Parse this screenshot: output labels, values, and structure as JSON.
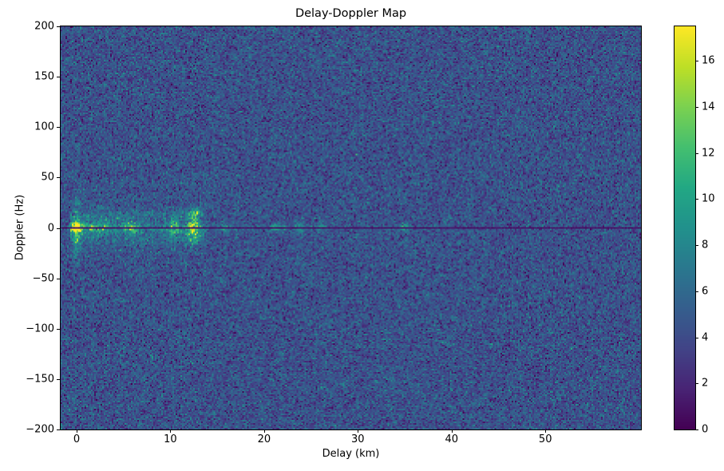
{
  "chart_data": {
    "type": "heatmap",
    "title": "Delay-Doppler Map",
    "xlabel": "Delay (km)",
    "ylabel": "Doppler (Hz)",
    "xlim": [
      -1.7,
      60.2
    ],
    "ylim": [
      -200,
      200
    ],
    "x_ticks": [
      {
        "value": 0,
        "label": "0"
      },
      {
        "value": 10,
        "label": "10"
      },
      {
        "value": 20,
        "label": "20"
      },
      {
        "value": 30,
        "label": "30"
      },
      {
        "value": 40,
        "label": "40"
      },
      {
        "value": 50,
        "label": "50"
      }
    ],
    "y_ticks": [
      {
        "value": 200,
        "label": "200"
      },
      {
        "value": 150,
        "label": "150"
      },
      {
        "value": 100,
        "label": "100"
      },
      {
        "value": 50,
        "label": "50"
      },
      {
        "value": 0,
        "label": "0"
      },
      {
        "value": -50,
        "label": "−50"
      },
      {
        "value": -100,
        "label": "−100"
      },
      {
        "value": -150,
        "label": "−150"
      },
      {
        "value": -200,
        "label": "−200"
      }
    ],
    "colorbar": {
      "vmin": 0,
      "vmax": 17.5,
      "ticks": [
        {
          "value": 0,
          "label": "0"
        },
        {
          "value": 2,
          "label": "2"
        },
        {
          "value": 4,
          "label": "4"
        },
        {
          "value": 6,
          "label": "6"
        },
        {
          "value": 8,
          "label": "8"
        },
        {
          "value": 10,
          "label": "10"
        },
        {
          "value": 12,
          "label": "12"
        },
        {
          "value": 14,
          "label": "14"
        },
        {
          "value": 16,
          "label": "16"
        }
      ],
      "colormap": "viridis",
      "stops": [
        [
          0.0,
          "#440154"
        ],
        [
          0.1,
          "#482475"
        ],
        [
          0.2,
          "#414487"
        ],
        [
          0.3,
          "#355f8d"
        ],
        [
          0.4,
          "#2a788e"
        ],
        [
          0.5,
          "#21918c"
        ],
        [
          0.6,
          "#22a884"
        ],
        [
          0.7,
          "#44bf70"
        ],
        [
          0.8,
          "#7ad151"
        ],
        [
          0.9,
          "#bddf26"
        ],
        [
          1.0,
          "#fde725"
        ]
      ]
    },
    "noise": {
      "mean": 4.4,
      "std": 1.5,
      "seed": 42
    },
    "grid": {
      "nx": 364,
      "ny": 253
    },
    "features": [
      {
        "kind": "blob",
        "delay": 0,
        "doppler": 0,
        "amp": 16,
        "sigma_delay": 0.35,
        "sigma_doppler": 2.8
      },
      {
        "kind": "vstreak",
        "delay": 0,
        "amp": 4.5,
        "sigma_delay": 0.28,
        "doppler_extent": 38
      },
      {
        "kind": "hband",
        "delay_min": -0.6,
        "delay_max": 13.6,
        "doppler_center": 0,
        "sigma_doppler": 6,
        "amp": 3.2,
        "decay": 0.12
      },
      {
        "kind": "hband",
        "delay_min": -0.6,
        "delay_max": 14,
        "doppler_center": 0,
        "sigma_doppler": 18,
        "amp": 0.9,
        "decay": 0.0
      },
      {
        "kind": "hband",
        "delay_min": -0.6,
        "delay_max": 13.5,
        "doppler_center": 13,
        "sigma_doppler": 2.5,
        "amp": 1.4,
        "decay": 0.0
      },
      {
        "kind": "hband",
        "delay_min": -0.6,
        "delay_max": 13.5,
        "doppler_center": -13,
        "sigma_doppler": 2.5,
        "amp": 1.2,
        "decay": 0.0
      },
      {
        "kind": "hband",
        "delay_min": -1.0,
        "delay_max": 44,
        "doppler_center": 0,
        "sigma_doppler": 1.5,
        "amp": 3.4,
        "decay": 0.055
      },
      {
        "kind": "blob",
        "delay": 2.3,
        "doppler": 0,
        "amp": 3.5,
        "sigma_delay": 0.7,
        "sigma_doppler": 4
      },
      {
        "kind": "blob",
        "delay": 5.8,
        "doppler": 0,
        "amp": 5,
        "sigma_delay": 0.5,
        "sigma_doppler": 5
      },
      {
        "kind": "blob",
        "delay": 10.4,
        "doppler": 0,
        "amp": 6,
        "sigma_delay": 0.4,
        "sigma_doppler": 6
      },
      {
        "kind": "blob",
        "delay": 12.4,
        "doppler": 0,
        "amp": 7,
        "sigma_delay": 0.5,
        "sigma_doppler": 9
      },
      {
        "kind": "vstreak",
        "delay": 12.5,
        "amp": 2.2,
        "sigma_delay": 0.3,
        "doppler_extent": 24
      },
      {
        "kind": "blob",
        "delay": 12.8,
        "doppler": 15,
        "amp": 5,
        "sigma_delay": 0.4,
        "sigma_doppler": 2
      },
      {
        "kind": "blob",
        "delay": 15.8,
        "doppler": 0,
        "amp": 3,
        "sigma_delay": 0.5,
        "sigma_doppler": 3
      },
      {
        "kind": "blob",
        "delay": 21.5,
        "doppler": 0,
        "amp": 4,
        "sigma_delay": 0.5,
        "sigma_doppler": 3
      },
      {
        "kind": "blob",
        "delay": 23.7,
        "doppler": 0,
        "amp": 4.5,
        "sigma_delay": 0.4,
        "sigma_doppler": 4
      },
      {
        "kind": "blob",
        "delay": 26,
        "doppler": 0,
        "amp": 3.5,
        "sigma_delay": 0.4,
        "sigma_doppler": 2.5
      },
      {
        "kind": "blob",
        "delay": 35,
        "doppler": 0,
        "amp": 5,
        "sigma_delay": 0.4,
        "sigma_doppler": 3
      },
      {
        "kind": "notch",
        "doppler": 0,
        "halfwidth": 0.9,
        "value": 1.0
      }
    ]
  }
}
